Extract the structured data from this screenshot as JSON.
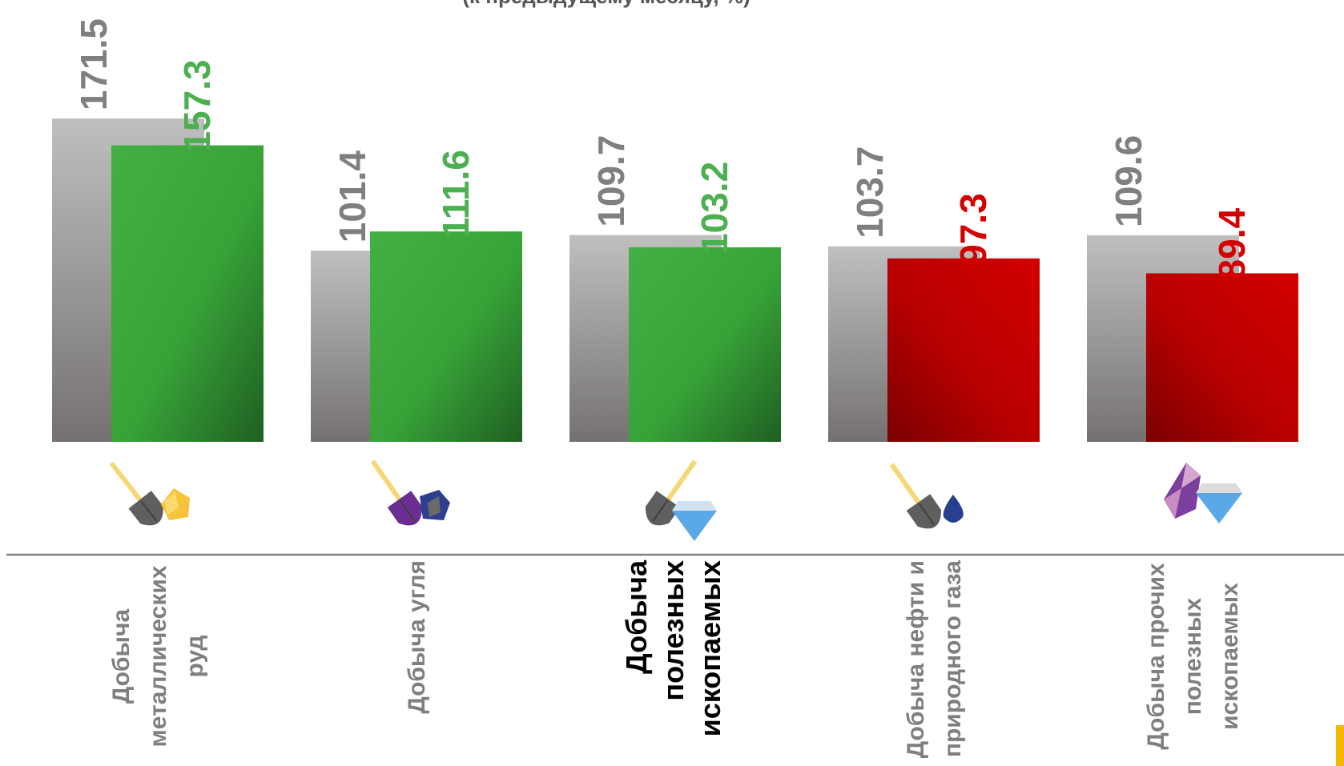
{
  "subtitle": "(к предыдущему месяцу, %)",
  "colors": {
    "previous": "#a6a6a6",
    "growth": "#3aa63a",
    "decline": "#c00000",
    "previous_label": "#7f7f7f",
    "growth_label": "#4caf50",
    "decline_label": "#d40000",
    "accent": "#f5b800"
  },
  "chart_data": {
    "type": "bar",
    "title": "",
    "xlabel": "",
    "ylabel": "",
    "ylim": [
      0,
      180
    ],
    "grid": false,
    "legend": "none",
    "categories": [
      "Добыча металлических руд",
      "Добыча угля",
      "Добыча полезных ископаемых",
      "Добыча нефти и природного газа",
      "Добыча прочих полезных ископаемых"
    ],
    "category_lines": [
      [
        "Добыча",
        "металлических",
        "руд"
      ],
      [
        "Добыча угля"
      ],
      [
        "Добыча",
        "полезных",
        "ископаемых"
      ],
      [
        "Добыча нефти и",
        "природного газа"
      ],
      [
        "Добыча прочих",
        "полезных",
        "ископаемых"
      ]
    ],
    "highlighted_category": 2,
    "series": [
      {
        "values": [
          171.5,
          101.4,
          109.7,
          103.7,
          109.6
        ]
      },
      {
        "values": [
          157.3,
          111.6,
          103.2,
          97.3,
          89.4
        ]
      }
    ],
    "icons": [
      "shovel-gold-ore-icon",
      "shovel-coal-icon",
      "shovel-diamond-icon",
      "shovel-oil-drop-icon",
      "crystal-diamond-icon"
    ]
  }
}
